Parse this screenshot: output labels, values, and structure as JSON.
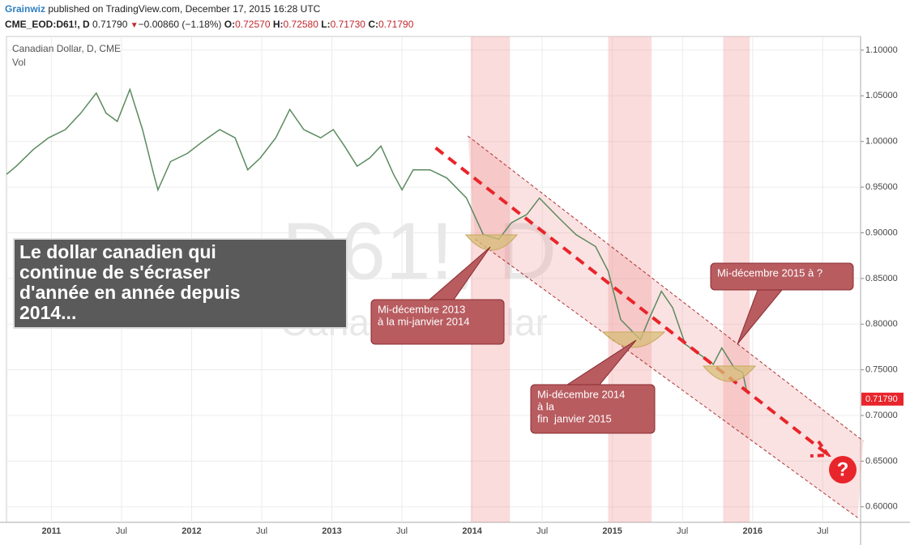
{
  "header": {
    "author": "Grainwiz",
    "published": "published on TradingView.com, December 17, 2015 16:28 UTC",
    "symbol": "CME_EOD:D61!, D",
    "last": "0.71790",
    "change": "−0.00860 (−1.18%)",
    "open_label": "O:",
    "open": "0.72570",
    "high_label": "H:",
    "high": "0.72580",
    "low_label": "L:",
    "low": "0.71730",
    "close_label": "C:",
    "close": "0.71790"
  },
  "chart_data": {
    "type": "line",
    "title": "Canadian Dollar, D, CME",
    "subtitle": "Vol",
    "watermark": [
      "D61!, D",
      "Canadian Dollar"
    ],
    "xlim": [
      2010.68,
      2016.77
    ],
    "ylim": [
      0.583,
      1.115
    ],
    "grid": true,
    "xticks": [
      {
        "value": 2011,
        "label": "2011"
      },
      {
        "value": 2011.5,
        "label": "Jul"
      },
      {
        "value": 2012,
        "label": "2012"
      },
      {
        "value": 2012.5,
        "label": "Jul"
      },
      {
        "value": 2013,
        "label": "2013"
      },
      {
        "value": 2013.5,
        "label": "Jul"
      },
      {
        "value": 2014,
        "label": "2014"
      },
      {
        "value": 2014.5,
        "label": "Jul"
      },
      {
        "value": 2015,
        "label": "2015"
      },
      {
        "value": 2015.5,
        "label": "Jul"
      },
      {
        "value": 2016,
        "label": "2016"
      },
      {
        "value": 2016.5,
        "label": "Jul"
      }
    ],
    "yticks": [
      {
        "value": 0.6,
        "label": "0.60000"
      },
      {
        "value": 0.65,
        "label": "0.65000"
      },
      {
        "value": 0.7,
        "label": "0.70000"
      },
      {
        "value": 0.75,
        "label": "0.75000"
      },
      {
        "value": 0.8,
        "label": "0.80000"
      },
      {
        "value": 0.85,
        "label": "0.85000"
      },
      {
        "value": 0.9,
        "label": "0.90000"
      },
      {
        "value": 0.95,
        "label": "0.95000"
      },
      {
        "value": 1.0,
        "label": "1.00000"
      },
      {
        "value": 1.05,
        "label": "1.05000"
      },
      {
        "value": 1.1,
        "label": "1.10000"
      }
    ],
    "x": [
      2010.68,
      2010.75,
      2010.87,
      2010.98,
      2011.1,
      2011.21,
      2011.32,
      2011.39,
      2011.47,
      2011.56,
      2011.65,
      2011.73,
      2011.76,
      2011.85,
      2011.97,
      2012.08,
      2012.2,
      2012.31,
      2012.4,
      2012.49,
      2012.6,
      2012.7,
      2012.8,
      2012.92,
      2013.01,
      2013.09,
      2013.18,
      2013.27,
      2013.35,
      2013.44,
      2013.5,
      2013.58,
      2013.7,
      2013.82,
      2013.96,
      2014.08,
      2014.19,
      2014.28,
      2014.39,
      2014.48,
      2014.62,
      2014.74,
      2014.88,
      2014.97,
      2015.06,
      2015.2,
      2015.26,
      2015.35,
      2015.43,
      2015.52,
      2015.64,
      2015.72,
      2015.78,
      2015.87,
      2015.93,
      2015.96
    ],
    "series": [
      {
        "name": "D61!",
        "color": "#5b8a5f",
        "values": [
          0.964,
          0.973,
          0.991,
          1.004,
          1.013,
          1.031,
          1.053,
          1.031,
          1.022,
          1.057,
          1.013,
          0.964,
          0.947,
          0.978,
          0.987,
          1.0,
          1.013,
          1.004,
          0.969,
          0.982,
          1.004,
          1.035,
          1.013,
          1.004,
          1.013,
          0.995,
          0.973,
          0.982,
          0.995,
          0.964,
          0.947,
          0.969,
          0.969,
          0.96,
          0.938,
          0.898,
          0.893,
          0.911,
          0.92,
          0.938,
          0.916,
          0.898,
          0.885,
          0.858,
          0.805,
          0.783,
          0.805,
          0.836,
          0.818,
          0.778,
          0.765,
          0.756,
          0.774,
          0.752,
          0.747,
          0.725
        ]
      }
    ],
    "last_price": {
      "value": 0.7179,
      "label": "0.71790"
    },
    "highlights": [
      {
        "x0": 2013.99,
        "x1": 2014.27
      },
      {
        "x0": 2014.97,
        "x1": 2015.28
      },
      {
        "x0": 2015.79,
        "x1": 2015.98
      }
    ],
    "trend_lines": [
      {
        "x": [
          2013.97,
          2016.79
        ],
        "y": [
          1.006,
          0.672
        ],
        "style": "dotted"
      },
      {
        "x": [
          2013.74,
          2016.53
        ],
        "y": [
          0.993,
          0.658
        ],
        "style": "dashed"
      },
      {
        "x": [
          2014.02,
          2016.75
        ],
        "y": [
          0.893,
          0.588
        ],
        "style": "dotted"
      }
    ],
    "headline": [
      "Le dollar canadien qui",
      "continue de s'écraser",
      "d'année en année depuis",
      "2014..."
    ],
    "callouts": [
      [
        "Mi-décembre 2013",
        "à la mi-janvier 2014"
      ],
      [
        "Mi-décembre 2014",
        "à la",
        "fin  janvier 2015"
      ],
      [
        "Mi-décembre 2015 à ?"
      ]
    ],
    "question": "?"
  }
}
